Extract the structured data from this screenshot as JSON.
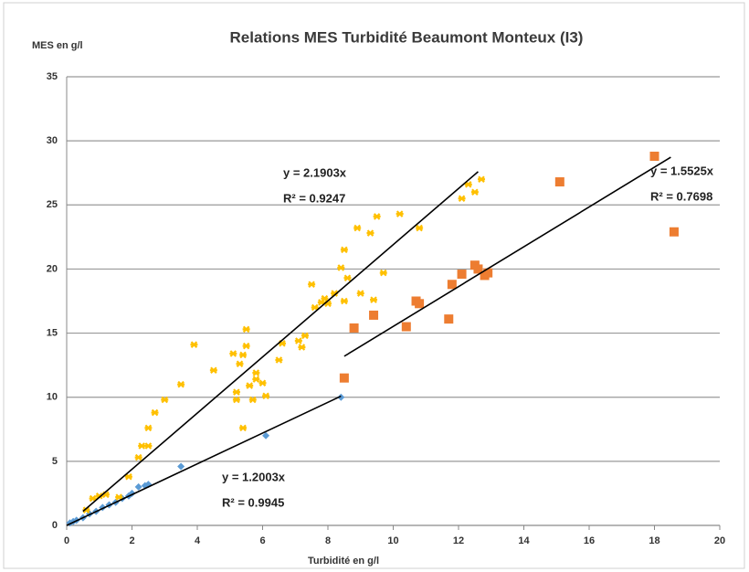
{
  "chart_data": {
    "type": "scatter",
    "title": "Relations MES Turbidité Beaumont Monteux (I3)",
    "y_label": "MES en g/l",
    "x_label": "Turbidité en g/l",
    "xlim": [
      0,
      20
    ],
    "xticks": [
      0,
      2,
      4,
      6,
      8,
      10,
      12,
      14,
      16,
      18,
      20
    ],
    "ylim": [
      0,
      35
    ],
    "yticks": [
      0,
      5,
      10,
      15,
      20,
      25,
      30,
      35
    ],
    "grid": true,
    "series": [
      {
        "color": "#5b9bd5",
        "marker": "diamond",
        "x": [
          0.1,
          0.2,
          0.3,
          0.5,
          0.7,
          0.9,
          1.1,
          1.3,
          1.5,
          1.7,
          1.9,
          2.0,
          2.2,
          2.4,
          2.5,
          3.5,
          6.1,
          8.4
        ],
        "y": [
          0.2,
          0.3,
          0.4,
          0.6,
          0.9,
          1.1,
          1.4,
          1.6,
          1.8,
          2.1,
          2.3,
          2.5,
          3.0,
          3.1,
          3.2,
          4.6,
          7.0,
          10.0
        ]
      },
      {
        "color": "#ffc000",
        "marker": "x",
        "x": [
          0.6,
          0.8,
          1.0,
          1.2,
          1.6,
          1.9,
          2.2,
          2.3,
          2.5,
          2.5,
          2.7,
          3.0,
          3.5,
          3.9,
          4.5,
          5.1,
          5.2,
          5.2,
          5.3,
          5.4,
          5.4,
          5.5,
          5.5,
          5.6,
          5.7,
          5.8,
          5.8,
          6.0,
          6.1,
          6.5,
          6.6,
          7.1,
          7.2,
          7.3,
          7.5,
          7.6,
          7.8,
          7.9,
          8.0,
          8.2,
          8.4,
          8.5,
          8.5,
          8.6,
          8.9,
          9.0,
          9.3,
          9.4,
          9.5,
          9.7,
          10.2,
          10.8,
          12.1,
          12.3,
          12.5,
          12.7
        ],
        "y": [
          1.2,
          2.1,
          2.3,
          2.4,
          2.2,
          3.8,
          5.3,
          6.2,
          6.2,
          7.6,
          8.8,
          9.8,
          11.0,
          14.1,
          12.1,
          13.4,
          10.4,
          9.8,
          12.6,
          13.3,
          7.6,
          14.0,
          15.3,
          10.9,
          9.8,
          11.9,
          11.4,
          11.1,
          10.1,
          12.9,
          14.2,
          14.4,
          13.9,
          14.8,
          18.8,
          17.0,
          17.4,
          17.7,
          17.3,
          18.1,
          20.1,
          21.5,
          17.5,
          19.3,
          23.2,
          18.1,
          22.8,
          17.6,
          24.1,
          19.7,
          24.3,
          23.2,
          25.5,
          26.6,
          26.0,
          27.0
        ]
      },
      {
        "color": "#ed7d31",
        "marker": "square",
        "x": [
          8.5,
          8.8,
          9.4,
          10.4,
          10.7,
          10.8,
          11.7,
          11.8,
          12.1,
          12.5,
          12.6,
          12.8,
          12.9,
          15.1,
          18.0,
          18.6
        ],
        "y": [
          11.5,
          15.4,
          16.4,
          15.5,
          17.5,
          17.3,
          16.1,
          18.8,
          19.6,
          20.3,
          20.0,
          19.5,
          19.7,
          26.8,
          28.8,
          22.9
        ]
      }
    ],
    "trendlines": [
      {
        "slope": 2.1903,
        "x_range": [
          0.5,
          12.6
        ],
        "equation": "y = 2.1903x",
        "r2": "R² = 0.9247"
      },
      {
        "slope": 1.2003,
        "x_range": [
          0,
          8.4
        ],
        "equation": "y = 1.2003x",
        "r2": "R² = 0.9945"
      },
      {
        "slope": 1.5525,
        "x_range": [
          8.5,
          18.5
        ],
        "equation": "y = 1.5525x",
        "r2": "R² = 0.7698"
      }
    ]
  }
}
